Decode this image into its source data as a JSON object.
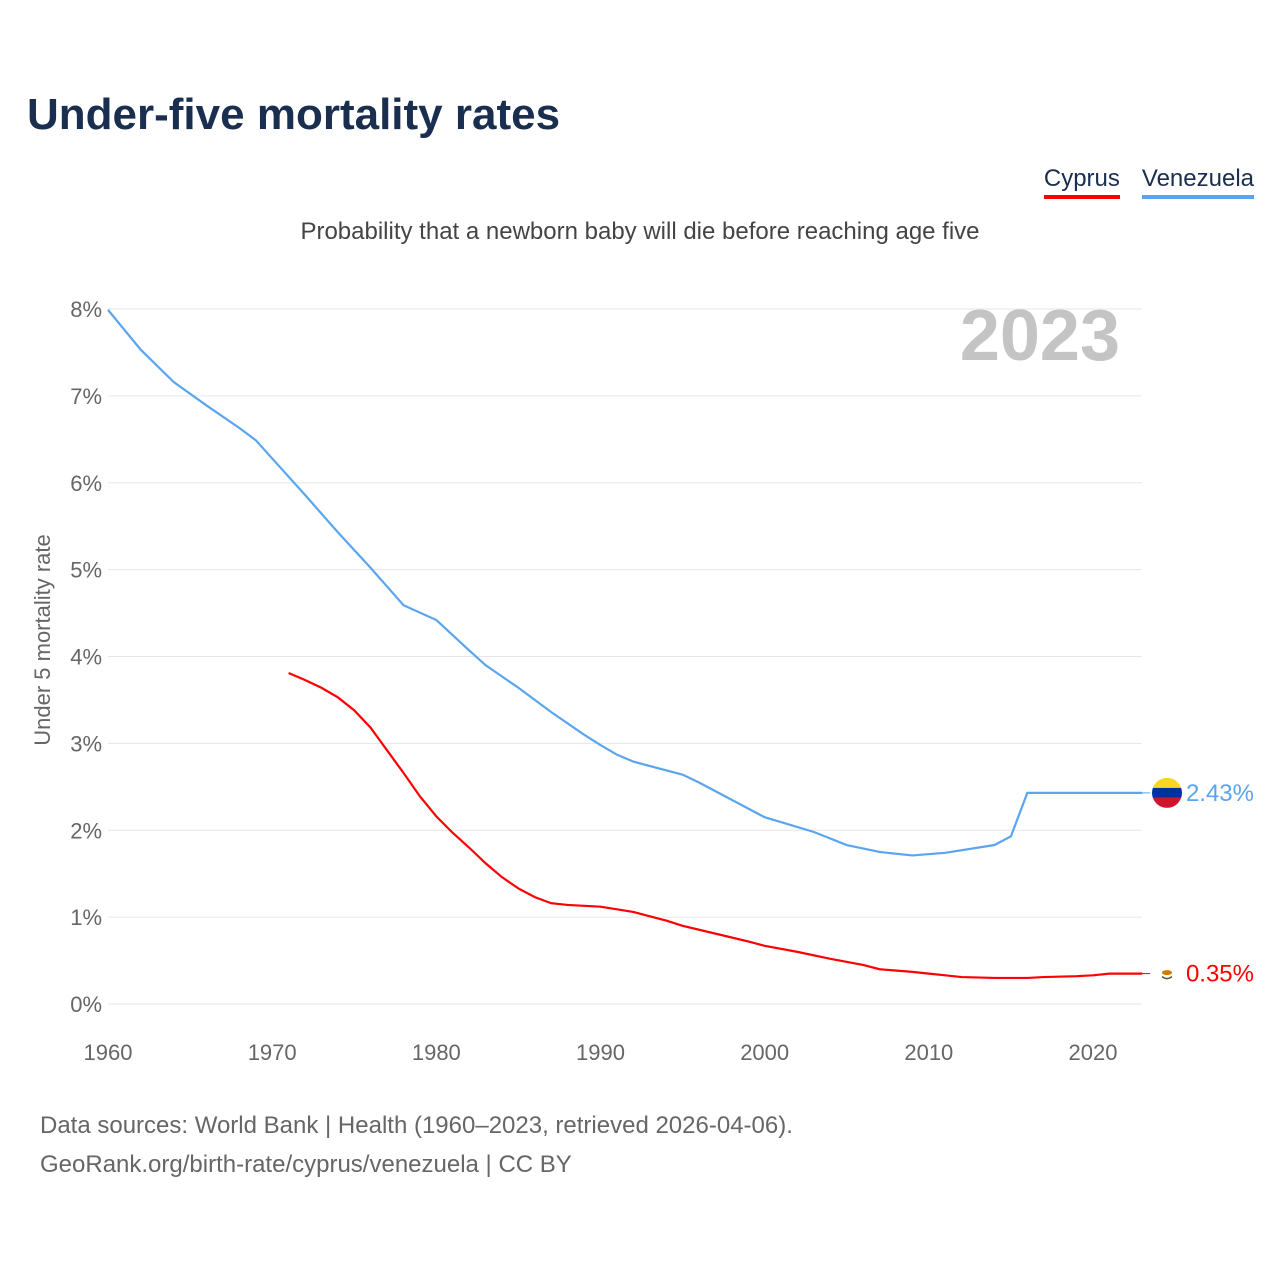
{
  "title": "Under-five mortality rates",
  "subtitle": "Probability that a newborn baby will die before reaching age five",
  "footer": {
    "line1": "Data sources: World Bank | Health (1960–2023, retrieved 2026-04-06).",
    "line2": "GeoRank.org/birth-rate/cyprus/venezuela | CC BY"
  },
  "chart_data": {
    "type": "line",
    "title": "Under-five mortality rates",
    "ylabel": "Under 5 mortality rate",
    "xlabel": "",
    "year_label": "2023",
    "xlim": [
      1960,
      2023
    ],
    "ylim": [
      0,
      8
    ],
    "xticks": [
      "1960",
      "1970",
      "1980",
      "1990",
      "2000",
      "2010",
      "2020"
    ],
    "yticks": [
      "0%",
      "1%",
      "2%",
      "3%",
      "4%",
      "5%",
      "6%",
      "7%",
      "8%"
    ],
    "legend_position": "top-right",
    "series": [
      {
        "name": "Cyprus",
        "color": "#ff0000",
        "end_label": "0.35%",
        "x": [
          1971,
          1972,
          1973,
          1974,
          1975,
          1976,
          1977,
          1978,
          1979,
          1980,
          1981,
          1982,
          1983,
          1984,
          1985,
          1986,
          1987,
          1988,
          1990,
          1991,
          1992,
          1993,
          1994,
          1995,
          1997,
          1999,
          2000,
          2002,
          2004,
          2006,
          2007,
          2009,
          2010,
          2011,
          2012,
          2014,
          2016,
          2017,
          2019,
          2020,
          2021,
          2023
        ],
        "y": [
          3.81,
          3.73,
          3.64,
          3.53,
          3.38,
          3.18,
          2.92,
          2.66,
          2.39,
          2.16,
          1.97,
          1.8,
          1.62,
          1.46,
          1.33,
          1.23,
          1.16,
          1.14,
          1.12,
          1.09,
          1.06,
          1.01,
          0.96,
          0.9,
          0.81,
          0.72,
          0.67,
          0.6,
          0.52,
          0.45,
          0.4,
          0.37,
          0.35,
          0.33,
          0.31,
          0.3,
          0.3,
          0.31,
          0.32,
          0.33,
          0.35,
          0.35
        ]
      },
      {
        "name": "Venezuela",
        "color": "#5aa5ee",
        "end_label": "2.43%",
        "x": [
          1960,
          1962,
          1964,
          1966,
          1968,
          1969,
          1970,
          1972,
          1974,
          1976,
          1978,
          1980,
          1982,
          1983,
          1985,
          1987,
          1989,
          1990,
          1991,
          1992,
          1995,
          1996,
          1998,
          2000,
          2003,
          2005,
          2007,
          2009,
          2011,
          2013,
          2014,
          2015,
          2016,
          2023
        ],
        "y": [
          7.99,
          7.53,
          7.16,
          6.89,
          6.63,
          6.49,
          6.28,
          5.86,
          5.43,
          5.02,
          4.59,
          4.42,
          4.07,
          3.9,
          3.64,
          3.36,
          3.1,
          2.98,
          2.87,
          2.79,
          2.64,
          2.55,
          2.35,
          2.15,
          1.98,
          1.83,
          1.75,
          1.71,
          1.74,
          1.8,
          1.83,
          1.93,
          2.43,
          2.43
        ]
      }
    ]
  }
}
